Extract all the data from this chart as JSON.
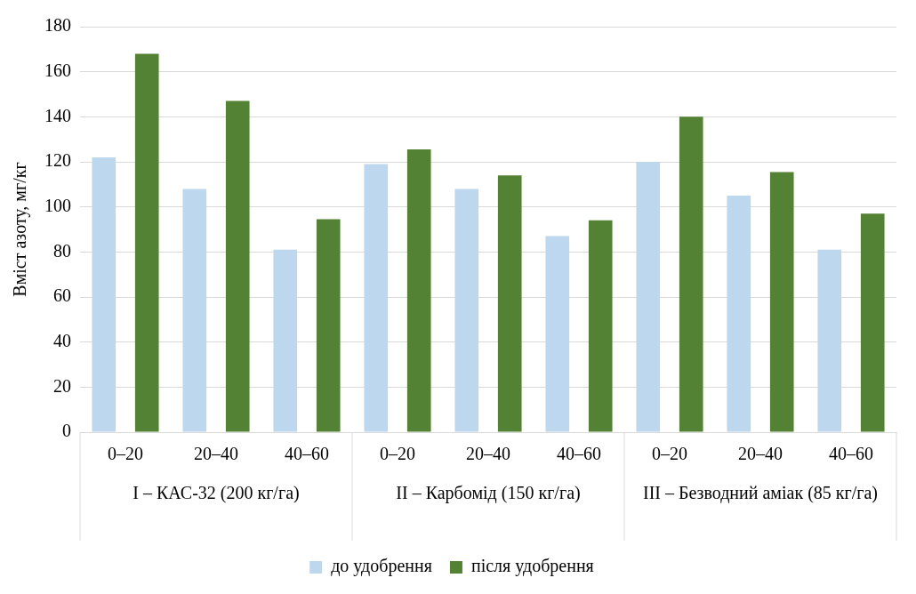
{
  "chart_data": {
    "type": "bar",
    "ylabel": "Вміст азоту, мг/кг",
    "categories": [
      "0–20",
      "20–40",
      "40–60",
      "0–20",
      "20–40",
      "40–60",
      "0–20",
      "20–40",
      "40–60"
    ],
    "annotations": [
      "I – КАС-32 (200 кг/га)",
      "II – Карбомід (150 кг/га)",
      "III – Безводний аміак (85 кг/га)"
    ],
    "series": [
      {
        "name": "до удобрення",
        "color": "#bdd7ee",
        "values": [
          122,
          108,
          81,
          119,
          108,
          87,
          120,
          105,
          81
        ]
      },
      {
        "name": "після удобрення",
        "color": "#548235",
        "values": [
          168,
          147,
          94.5,
          125.5,
          114,
          94,
          140,
          115.5,
          97
        ]
      }
    ],
    "ylim": [
      0,
      180
    ],
    "yticks": [
      0,
      20,
      40,
      60,
      80,
      100,
      120,
      140,
      160,
      180
    ],
    "grid": "y",
    "legend": "bottom"
  }
}
